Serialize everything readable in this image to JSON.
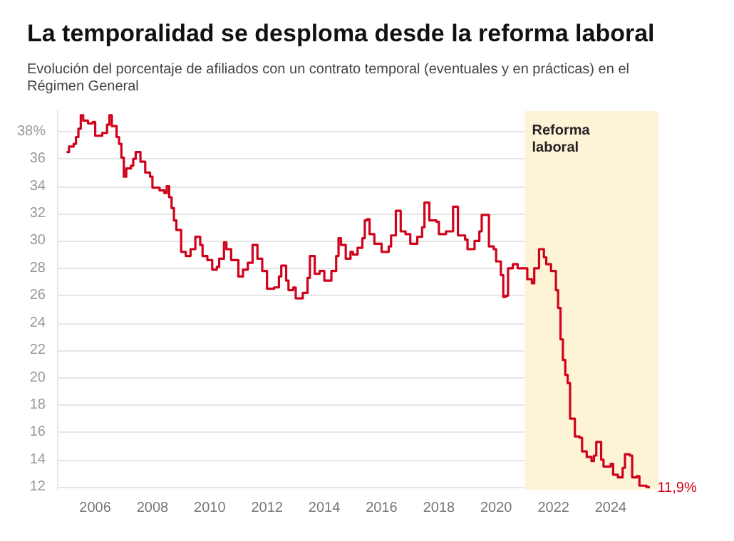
{
  "chart_data": {
    "type": "step",
    "title": "La temporalidad se desploma desde la reforma laboral",
    "subtitle": "Evolución del porcentaje de afiliados con un contrato temporal (eventuales y en prácticas) en el Régimen General",
    "x": [
      "2005-01",
      "2005-02",
      "2005-04",
      "2005-05",
      "2005-06",
      "2005-07",
      "2005-08",
      "2005-10",
      "2005-12",
      "2006-01",
      "2006-04",
      "2006-06",
      "2006-07",
      "2006-08",
      "2006-10",
      "2006-11",
      "2006-12",
      "2007-01",
      "2007-02",
      "2007-04",
      "2007-05",
      "2007-06",
      "2007-08",
      "2007-10",
      "2007-12",
      "2008-01",
      "2008-04",
      "2008-06",
      "2008-07",
      "2008-08",
      "2008-09",
      "2008-10",
      "2008-11",
      "2009-01",
      "2009-03",
      "2009-05",
      "2009-07",
      "2009-09",
      "2009-10",
      "2009-12",
      "2010-02",
      "2010-04",
      "2010-05",
      "2010-07",
      "2010-08",
      "2010-10",
      "2011-01",
      "2011-03",
      "2011-05",
      "2011-07",
      "2011-09",
      "2011-11",
      "2012-01",
      "2012-04",
      "2012-06",
      "2012-07",
      "2012-09",
      "2012-10",
      "2012-12",
      "2013-01",
      "2013-04",
      "2013-06",
      "2013-07",
      "2013-09",
      "2013-11",
      "2014-01",
      "2014-04",
      "2014-06",
      "2014-07",
      "2014-08",
      "2014-10",
      "2014-12",
      "2015-01",
      "2015-03",
      "2015-05",
      "2015-06",
      "2015-07",
      "2015-08",
      "2015-10",
      "2016-01",
      "2016-04",
      "2016-05",
      "2016-07",
      "2016-09",
      "2016-11",
      "2017-01",
      "2017-04",
      "2017-06",
      "2017-07",
      "2017-09",
      "2017-12",
      "2018-01",
      "2018-04",
      "2018-07",
      "2018-09",
      "2018-12",
      "2019-01",
      "2019-04",
      "2019-06",
      "2019-07",
      "2019-10",
      "2019-12",
      "2020-01",
      "2020-03",
      "2020-04",
      "2020-05",
      "2020-06",
      "2020-08",
      "2020-10",
      "2021-01",
      "2021-02",
      "2021-04",
      "2021-05",
      "2021-07",
      "2021-09",
      "2021-10",
      "2021-12",
      "2022-02",
      "2022-03",
      "2022-04",
      "2022-05",
      "2022-06",
      "2022-07",
      "2022-08",
      "2022-10",
      "2022-12",
      "2023-01",
      "2023-03",
      "2023-05",
      "2023-06",
      "2023-07",
      "2023-09",
      "2023-10",
      "2024-01",
      "2024-02",
      "2024-04",
      "2024-06",
      "2024-07",
      "2024-09",
      "2024-10",
      "2024-12",
      "2025-01",
      "2025-04",
      "2025-05"
    ],
    "series": [
      {
        "color": "#d0021b",
        "values": [
          36.5,
          36.9,
          37.1,
          37.6,
          38.2,
          39.2,
          38.8,
          38.6,
          38.7,
          37.7,
          37.9,
          38.5,
          39.2,
          38.4,
          37.6,
          37.1,
          36.1,
          34.7,
          35.3,
          35.5,
          36.0,
          36.5,
          35.8,
          35.0,
          34.7,
          33.9,
          33.7,
          33.5,
          34.0,
          33.2,
          32.4,
          31.5,
          30.8,
          29.2,
          28.9,
          29.4,
          30.3,
          29.7,
          28.9,
          28.6,
          27.9,
          28.1,
          28.7,
          29.9,
          29.4,
          28.6,
          27.4,
          27.9,
          28.4,
          29.7,
          28.7,
          27.8,
          26.5,
          26.6,
          27.4,
          28.2,
          27.1,
          26.4,
          26.6,
          25.8,
          26.2,
          27.3,
          28.9,
          27.6,
          27.8,
          27.1,
          27.8,
          28.9,
          30.2,
          29.7,
          28.7,
          29.2,
          29.0,
          29.5,
          30.2,
          31.5,
          31.6,
          30.5,
          29.8,
          29.2,
          29.6,
          30.4,
          32.2,
          30.7,
          30.5,
          29.8,
          30.3,
          31.0,
          32.8,
          31.5,
          31.4,
          30.5,
          30.7,
          32.5,
          30.4,
          30.1,
          29.4,
          30.0,
          30.7,
          31.9,
          29.6,
          29.4,
          28.5,
          27.5,
          25.9,
          26.0,
          28.0,
          28.3,
          28.0,
          28.0,
          27.2,
          26.9,
          28.0,
          29.4,
          28.8,
          28.3,
          27.8,
          26.4,
          25.1,
          22.8,
          21.3,
          20.2,
          19.6,
          17.0,
          15.7,
          15.6,
          14.6,
          14.2,
          13.9,
          14.3,
          15.3,
          14.0,
          13.5,
          13.7,
          12.9,
          12.7,
          13.4,
          14.4,
          14.3,
          12.7,
          12.8,
          12.1,
          12.0,
          11.9
        ]
      }
    ],
    "xlim": [
      "2004-09",
      "2025-09"
    ],
    "xticks": [
      "2006",
      "2008",
      "2010",
      "2012",
      "2014",
      "2016",
      "2018",
      "2020",
      "2022",
      "2024"
    ],
    "ylim": [
      11.8,
      39.5
    ],
    "yticks": [
      12,
      14,
      16,
      18,
      20,
      22,
      24,
      26,
      28,
      30,
      32,
      34,
      36,
      {
        "value": 38,
        "label": "38%"
      }
    ],
    "bands": [
      {
        "axis": "x",
        "from": "2021-01",
        "to": "2025-09",
        "label": "Reforma\nlaboral",
        "color": "#fdf3d6"
      }
    ],
    "annotations": [
      {
        "text": "11,9%",
        "x": "2025-05",
        "y": 11.9
      }
    ],
    "grid": "y"
  }
}
